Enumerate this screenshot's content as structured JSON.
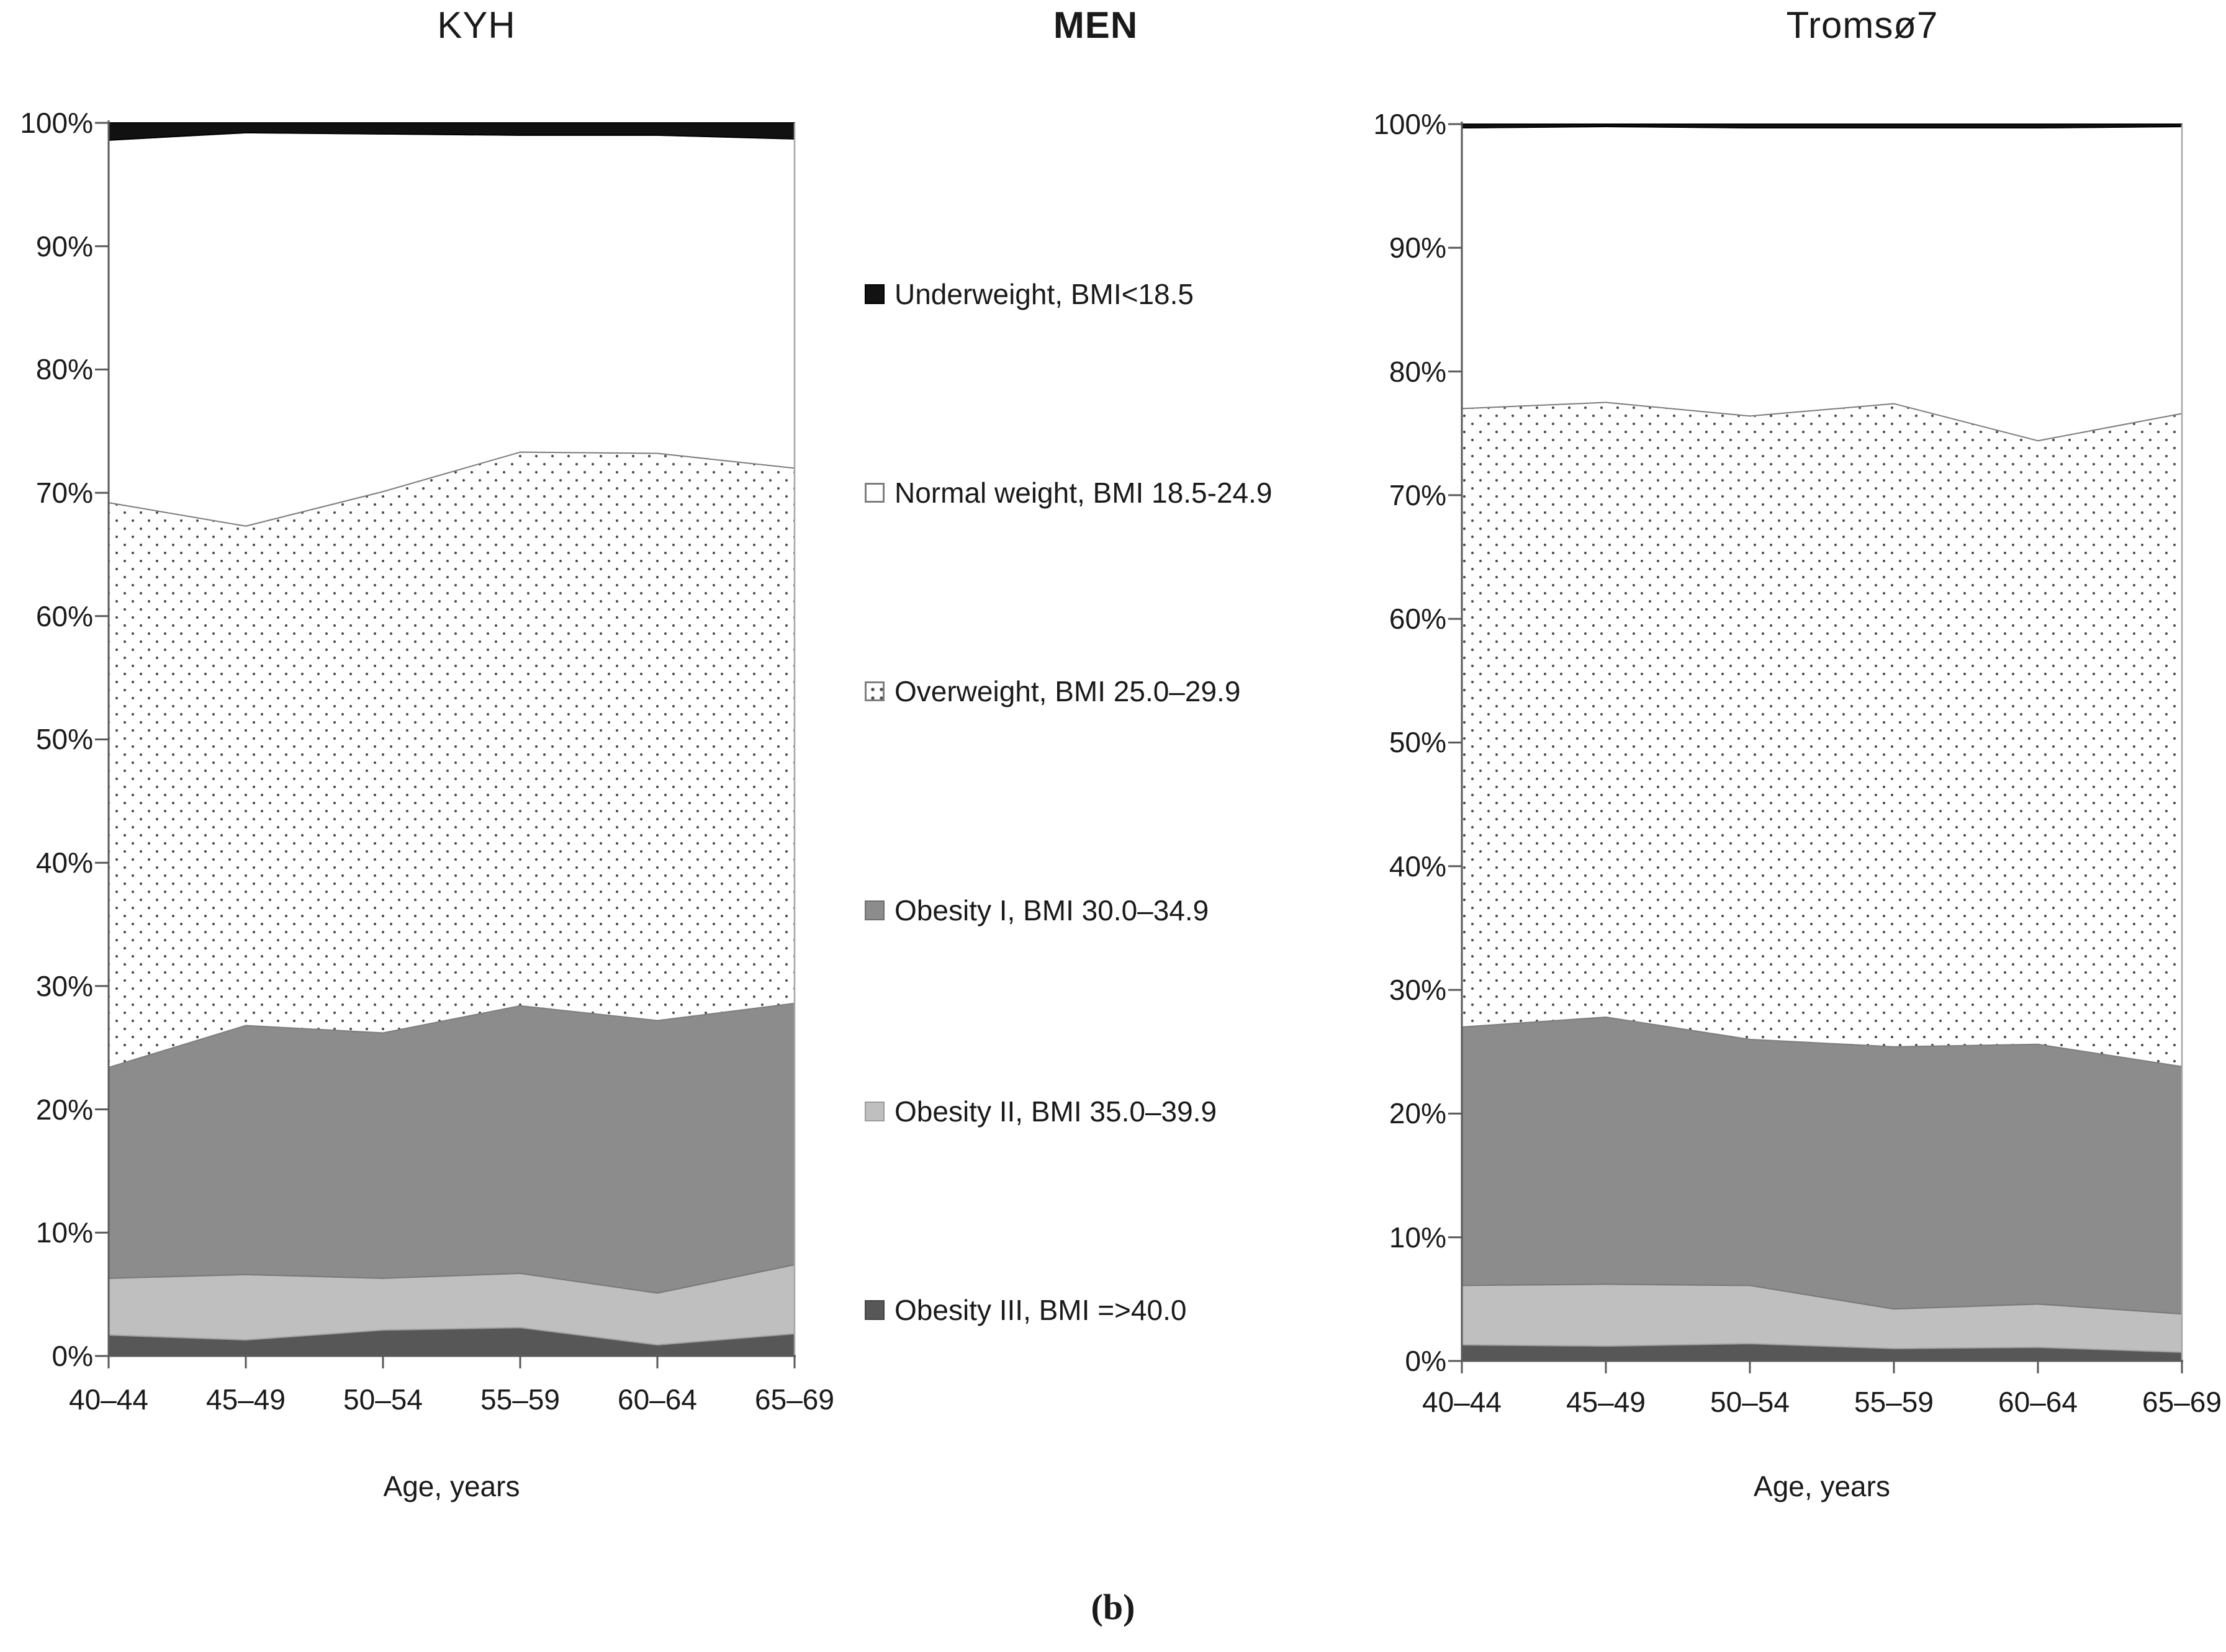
{
  "titles": {
    "left": "KYH",
    "center": "MEN",
    "right": "Tromsø7"
  },
  "caption": "(b)",
  "axes": {
    "y_tick_labels": [
      "100%",
      "90%",
      "80%",
      "70%",
      "60%",
      "50%",
      "40%",
      "30%",
      "20%",
      "10%",
      "0%"
    ],
    "x_tick_labels": [
      "40–44",
      "45–49",
      "50–54",
      "55–59",
      "60–64",
      "65–69"
    ],
    "x_axis_title": "Age, years"
  },
  "legend": {
    "items": [
      {
        "key": "underweight",
        "label": "Underweight, BMI<18.5"
      },
      {
        "key": "normal",
        "label": "Normal weight, BMI 18.5-24.9"
      },
      {
        "key": "overweight",
        "label": "Overweight, BMI 25.0–29.9"
      },
      {
        "key": "obesity1",
        "label": "Obesity I, BMI 30.0–34.9"
      },
      {
        "key": "obesity2",
        "label": "Obesity II, BMI 35.0–39.9"
      },
      {
        "key": "obesity3",
        "label": "Obesity III, BMI =>40.0"
      }
    ]
  },
  "colors": {
    "underweight": "#111111",
    "normal": "#ffffff",
    "overweight_dot": "#4d4d4d",
    "obesity1": "#8c8c8c",
    "obesity2": "#bfbfbf",
    "obesity3": "#575757",
    "boundary_line": "#7f7f7f",
    "axis_line": "#595959",
    "plot_border": "#a6a6a6"
  },
  "chart_data": [
    {
      "type": "area",
      "stacked": true,
      "units": "percent",
      "title": "KYH",
      "group": "MEN",
      "xlabel": "Age, years",
      "ylabel": "",
      "ylim": [
        0,
        100
      ],
      "grid": false,
      "legend_position": "center-between-charts",
      "categories": [
        "40–44",
        "45–49",
        "50–54",
        "55–59",
        "60–64",
        "65–69"
      ],
      "series_order": "bottom-to-top",
      "series": [
        {
          "key": "obesity3",
          "name": "Obesity III, BMI =>40.0",
          "values": [
            1.7,
            1.3,
            2.1,
            2.3,
            0.9,
            1.8
          ]
        },
        {
          "key": "obesity2",
          "name": "Obesity II, BMI 35.0–39.9",
          "values": [
            4.6,
            5.3,
            4.2,
            4.4,
            4.2,
            5.6
          ]
        },
        {
          "key": "obesity1",
          "name": "Obesity I, BMI 30.0–34.9",
          "values": [
            17.1,
            20.2,
            19.9,
            21.7,
            22.1,
            21.2
          ]
        },
        {
          "key": "overweight",
          "name": "Overweight, BMI 25.0–29.9",
          "values": [
            45.8,
            40.5,
            43.9,
            44.9,
            46.0,
            43.4
          ]
        },
        {
          "key": "normal",
          "name": "Normal weight, BMI 18.5-24.9",
          "values": [
            29.4,
            31.9,
            29.0,
            25.7,
            25.8,
            26.7
          ]
        },
        {
          "key": "underweight",
          "name": "Underweight, BMI<18.5",
          "values": [
            1.4,
            0.8,
            0.9,
            1.0,
            1.0,
            1.3
          ]
        }
      ]
    },
    {
      "type": "area",
      "stacked": true,
      "units": "percent",
      "title": "Tromsø7",
      "group": "MEN",
      "xlabel": "Age, years",
      "ylabel": "",
      "ylim": [
        0,
        100
      ],
      "grid": false,
      "legend_position": "center-between-charts",
      "categories": [
        "40–44",
        "45–49",
        "50–54",
        "55–59",
        "60–64",
        "65–69"
      ],
      "series_order": "bottom-to-top",
      "series": [
        {
          "key": "obesity3",
          "name": "Obesity III, BMI =>40.0",
          "values": [
            1.3,
            1.2,
            1.4,
            1.0,
            1.1,
            0.7
          ]
        },
        {
          "key": "obesity2",
          "name": "Obesity II, BMI 35.0–39.9",
          "values": [
            4.8,
            5.0,
            4.7,
            3.2,
            3.5,
            3.1
          ]
        },
        {
          "key": "obesity1",
          "name": "Obesity I, BMI 30.0–34.9",
          "values": [
            20.9,
            21.6,
            19.9,
            21.2,
            21.0,
            20.0
          ]
        },
        {
          "key": "overweight",
          "name": "Overweight, BMI 25.0–29.9",
          "values": [
            50.0,
            49.7,
            50.4,
            52.0,
            48.8,
            52.8
          ]
        },
        {
          "key": "normal",
          "name": "Normal weight, BMI 18.5-24.9",
          "values": [
            22.7,
            22.3,
            23.3,
            22.3,
            25.3,
            23.2
          ]
        },
        {
          "key": "underweight",
          "name": "Underweight, BMI<18.5",
          "values": [
            0.3,
            0.2,
            0.3,
            0.3,
            0.3,
            0.2
          ]
        }
      ]
    }
  ]
}
